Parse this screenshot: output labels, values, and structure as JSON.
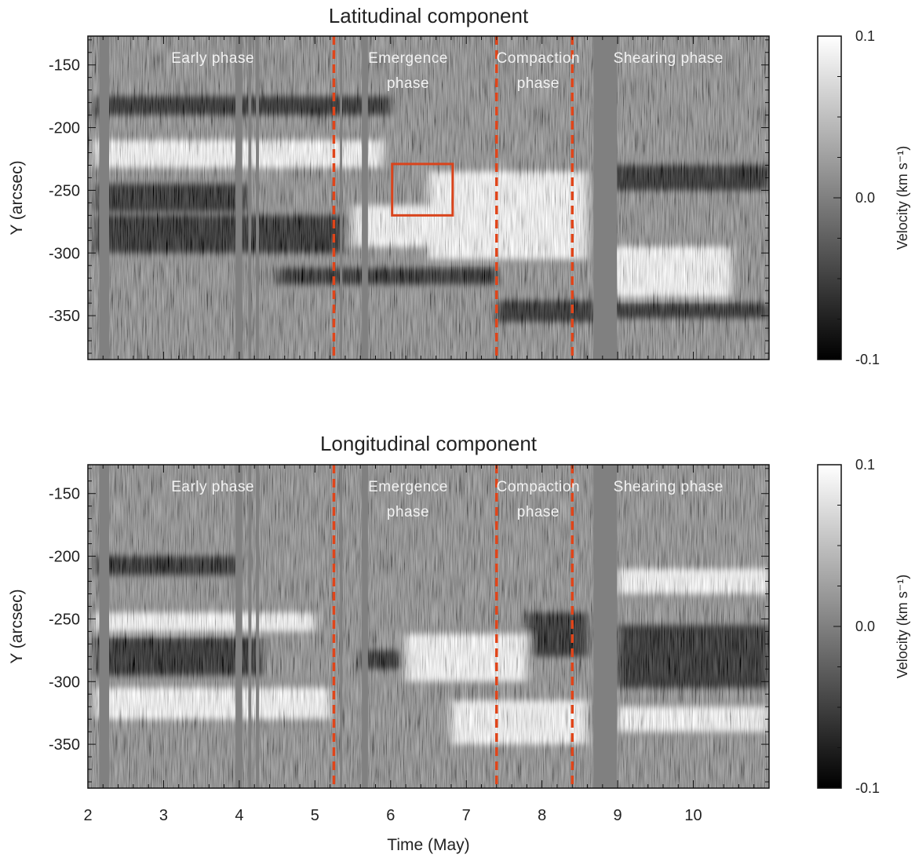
{
  "chart_data": {
    "type": "heatmap",
    "x_axis": {
      "label": "Time (May)",
      "range": [
        2,
        11
      ],
      "ticks": [
        2,
        3,
        4,
        5,
        6,
        7,
        8,
        9,
        10
      ],
      "tick_labels": [
        "2",
        "3",
        "4",
        "5",
        "6",
        "7",
        "8",
        "9",
        "10"
      ]
    },
    "y_axis": {
      "label": "Y (arcsec)",
      "range": [
        -385,
        -127
      ],
      "ticks": [
        -150,
        -200,
        -250,
        -300,
        -350
      ],
      "tick_labels": [
        "-150",
        "-200",
        "-250",
        "-300",
        "-350"
      ]
    },
    "colorbar": {
      "label": "Velocity (km s⁻¹)",
      "range": [
        -0.1,
        0.1
      ],
      "ticks": [
        0.1,
        0.0,
        -0.1
      ],
      "tick_labels": [
        "0.1",
        "0.0",
        "-0.1"
      ],
      "colormap": "grayscale"
    },
    "phase_boundaries": [
      5.25,
      7.4,
      8.4
    ],
    "phase_boundary_color": "#e0451a",
    "gap_color": "#808080",
    "data_gaps": [
      {
        "x": [
          2.15,
          2.28
        ]
      },
      {
        "x": [
          3.95,
          4.04
        ]
      },
      {
        "x": [
          4.12,
          4.16
        ]
      },
      {
        "x": [
          4.22,
          4.26
        ]
      },
      {
        "x": [
          5.33,
          5.36
        ]
      },
      {
        "x": [
          5.62,
          5.7
        ]
      },
      {
        "x": [
          8.68,
          8.99
        ]
      }
    ],
    "phase_labels": [
      {
        "lines": [
          "Early  phase"
        ],
        "x": 3.65
      },
      {
        "lines": [
          "Emergence",
          "phase"
        ],
        "x": 6.23
      },
      {
        "lines": [
          "Compaction",
          "phase"
        ],
        "x": 7.95
      },
      {
        "lines": [
          "Shearing  phase"
        ],
        "x": 9.67
      }
    ],
    "panels": [
      {
        "title": "Latitudinal component",
        "region_box": {
          "x": [
            6.02,
            6.82
          ],
          "y": [
            -270,
            -229
          ],
          "color": "#d9441c"
        },
        "bands": [
          {
            "value": -0.1,
            "x": [
              2.1,
              6.0
            ],
            "y": [
              -190,
              -175
            ]
          },
          {
            "value": 0.1,
            "x": [
              2.1,
              5.9
            ],
            "y": [
              -232,
              -210
            ]
          },
          {
            "value": -0.1,
            "x": [
              2.1,
              4.1
            ],
            "y": [
              -267,
              -245
            ]
          },
          {
            "value": -0.1,
            "x": [
              2.1,
              5.4
            ],
            "y": [
              -300,
              -270
            ]
          },
          {
            "value": 0.1,
            "x": [
              5.5,
              7.0
            ],
            "y": [
              -295,
              -262
            ]
          },
          {
            "value": 0.1,
            "x": [
              6.5,
              8.6
            ],
            "y": [
              -305,
              -235
            ]
          },
          {
            "value": -0.1,
            "x": [
              4.5,
              7.4
            ],
            "y": [
              -325,
              -312
            ]
          },
          {
            "value": -0.1,
            "x": [
              7.4,
              8.7
            ],
            "y": [
              -355,
              -338
            ]
          },
          {
            "value": -0.1,
            "x": [
              8.9,
              11.0
            ],
            "y": [
              -250,
              -230
            ]
          },
          {
            "value": 0.1,
            "x": [
              8.9,
              10.5
            ],
            "y": [
              -335,
              -295
            ]
          },
          {
            "value": -0.1,
            "x": [
              8.9,
              11.0
            ],
            "y": [
              -352,
              -340
            ]
          }
        ]
      },
      {
        "title": "Longitudinal component",
        "region_box": null,
        "bands": [
          {
            "value": -0.1,
            "x": [
              2.1,
              4.0
            ],
            "y": [
              -215,
              -200
            ]
          },
          {
            "value": 0.1,
            "x": [
              2.1,
              5.0
            ],
            "y": [
              -260,
              -245
            ]
          },
          {
            "value": -0.1,
            "x": [
              2.1,
              4.3
            ],
            "y": [
              -295,
              -265
            ]
          },
          {
            "value": 0.1,
            "x": [
              2.1,
              5.2
            ],
            "y": [
              -330,
              -305
            ]
          },
          {
            "value": -0.1,
            "x": [
              5.6,
              7.0
            ],
            "y": [
              -290,
              -275
            ]
          },
          {
            "value": 0.1,
            "x": [
              6.2,
              7.8
            ],
            "y": [
              -300,
              -262
            ]
          },
          {
            "value": 0.1,
            "x": [
              6.8,
              8.6
            ],
            "y": [
              -350,
              -315
            ]
          },
          {
            "value": -0.1,
            "x": [
              7.8,
              8.6
            ],
            "y": [
              -280,
              -245
            ]
          },
          {
            "value": -0.1,
            "x": [
              9.0,
              11.0
            ],
            "y": [
              -305,
              -255
            ]
          },
          {
            "value": 0.1,
            "x": [
              9.0,
              11.0
            ],
            "y": [
              -230,
              -210
            ]
          },
          {
            "value": 0.1,
            "x": [
              9.0,
              11.0
            ],
            "y": [
              -340,
              -320
            ]
          }
        ]
      }
    ]
  }
}
